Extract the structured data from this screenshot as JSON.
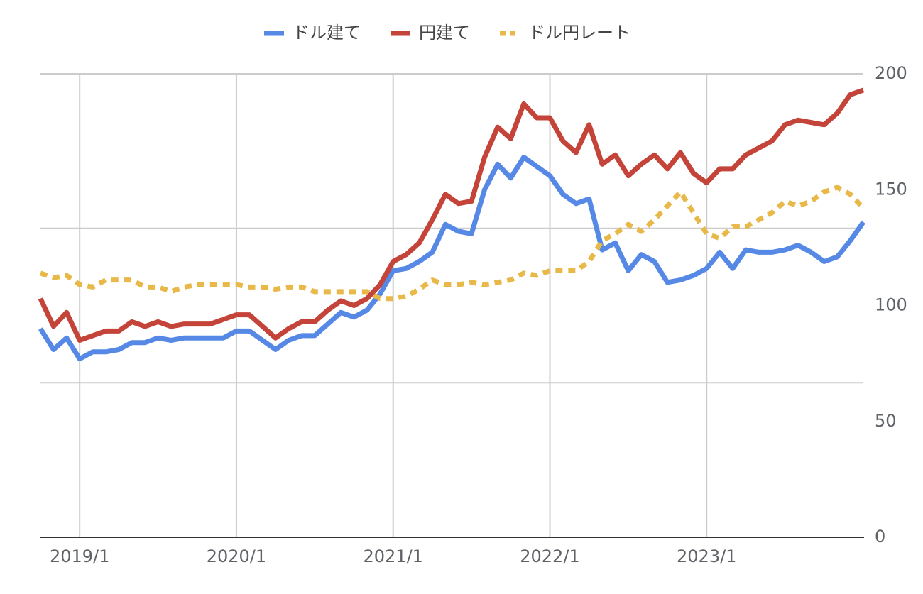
{
  "chart_data": {
    "type": "line",
    "categories": [
      null,
      null,
      null,
      "2019/1",
      null,
      null,
      null,
      null,
      null,
      null,
      null,
      null,
      null,
      null,
      null,
      "2020/1",
      null,
      null,
      null,
      null,
      null,
      null,
      null,
      null,
      null,
      null,
      null,
      "2021/1",
      null,
      null,
      null,
      null,
      null,
      null,
      null,
      null,
      null,
      null,
      null,
      "2022/1",
      null,
      null,
      null,
      null,
      null,
      null,
      null,
      null,
      null,
      null,
      null,
      "2023/1",
      null,
      null,
      null,
      null,
      null,
      null,
      null,
      null,
      null,
      null,
      null,
      null
    ],
    "series": [
      {
        "name": "ドル建て",
        "color": "#5689e6",
        "style": "solid",
        "values": [
          90,
          81,
          86,
          77,
          80,
          80,
          81,
          84,
          84,
          86,
          85,
          86,
          86,
          86,
          86,
          89,
          89,
          85,
          81,
          85,
          87,
          87,
          92,
          97,
          95,
          98,
          105,
          115,
          116,
          119,
          123,
          135,
          132,
          131,
          150,
          161,
          155,
          164,
          160,
          156,
          148,
          144,
          146,
          124,
          127,
          115,
          122,
          119,
          110,
          111,
          113,
          116,
          123,
          116,
          124,
          123,
          123,
          124,
          126,
          123,
          119,
          121,
          128,
          136
        ]
      },
      {
        "name": "円建て",
        "color": "#c5443a",
        "style": "solid",
        "values": [
          103,
          91,
          97,
          85,
          87,
          89,
          89,
          93,
          91,
          93,
          91,
          92,
          92,
          92,
          94,
          96,
          96,
          91,
          86,
          90,
          93,
          93,
          98,
          102,
          100,
          103,
          109,
          119,
          122,
          127,
          137,
          148,
          144,
          145,
          164,
          177,
          172,
          187,
          181,
          181,
          171,
          166,
          178,
          161,
          165,
          156,
          161,
          165,
          159,
          166,
          157,
          153,
          159,
          159,
          165,
          168,
          171,
          178,
          180,
          179,
          178,
          183,
          191,
          193
        ]
      },
      {
        "name": "ドル円レート",
        "color": "#e8b949",
        "style": "dotted",
        "values": [
          114,
          112,
          113,
          109,
          108,
          111,
          111,
          111,
          108,
          108,
          106,
          108,
          109,
          109,
          109,
          109,
          108,
          108,
          107,
          108,
          108,
          106,
          106,
          106,
          106,
          106,
          103,
          103,
          104,
          107,
          111,
          109,
          109,
          110,
          109,
          110,
          111,
          114,
          113,
          115,
          115,
          115,
          119,
          128,
          131,
          135,
          132,
          137,
          143,
          149,
          140,
          131,
          129,
          134,
          134,
          137,
          140,
          145,
          143,
          145,
          149,
          151,
          148,
          142
        ]
      }
    ],
    "ylim": [
      0,
      200
    ],
    "yticks": [
      0,
      50,
      100,
      150,
      200
    ],
    "y_gridlines": [
      0,
      66.7,
      133.3,
      200
    ],
    "grid": true,
    "legend": "top"
  }
}
